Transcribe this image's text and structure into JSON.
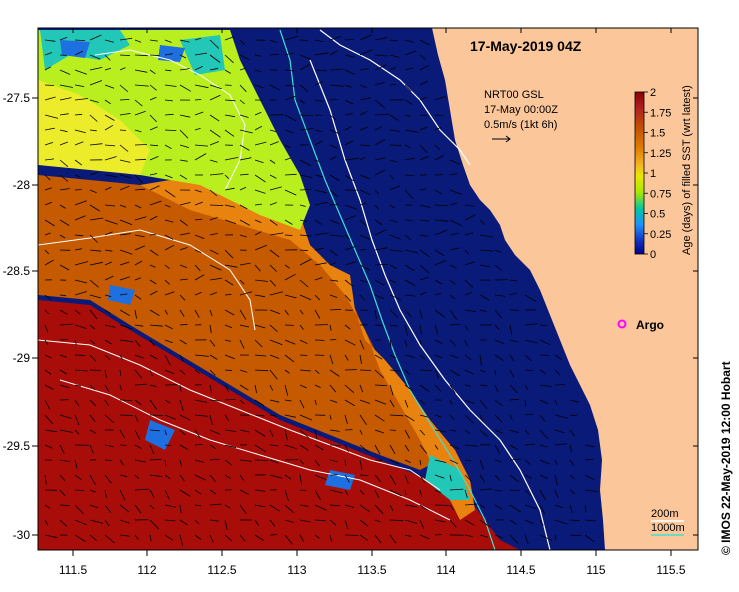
{
  "title": "17-May-2019 04Z",
  "credit": "© IMOS 22-May-2019 12:00 Hobart",
  "current_legend": {
    "line1": "NRT00 GSL",
    "line2": "17-May 00:00Z",
    "line3": "0.5m/s (1kt 6h)"
  },
  "colorbar": {
    "label": "Age (days) of filled SST (wrt latest)",
    "ticks": [
      "2",
      "1.75",
      "1.5",
      "1.25",
      "1",
      "0.75",
      "0.5",
      "0.25",
      "0"
    ],
    "colors": [
      "#8b0000",
      "#b22222",
      "#c45000",
      "#e07c00",
      "#f5a623",
      "#e8e800",
      "#a8e800",
      "#00d0b0",
      "#1e90ff",
      "#00008b"
    ]
  },
  "axes": {
    "x_ticks": [
      "111.5",
      "112",
      "112.5",
      "113",
      "113.5",
      "114",
      "114.5",
      "115",
      "115.5"
    ],
    "y_ticks": [
      "-27.5",
      "-28",
      "-28.5",
      "-29",
      "-29.5",
      "-30"
    ]
  },
  "argo": {
    "label": "Argo",
    "color": "#ff00ff"
  },
  "isobaths": [
    {
      "label": "200m",
      "color": "#ffffff"
    },
    {
      "label": "1000m",
      "color": "#40e0d0"
    }
  ],
  "colors": {
    "ocean_deep": "#0a1a78",
    "land": "#fbc79a",
    "red": "#a80d0a",
    "brown": "#c65a00",
    "orange": "#e9830f",
    "lime": "#b9ef1e",
    "yellow": "#ecec2a"
  }
}
